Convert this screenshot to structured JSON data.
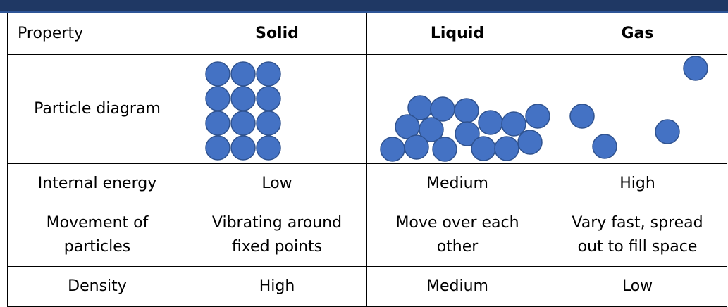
{
  "table": {
    "header": [
      "Property",
      "Solid",
      "Liquid",
      "Gas"
    ],
    "rows": [
      {
        "label": "Particle diagram"
      },
      {
        "label": "Internal energy",
        "cells": [
          "Low",
          "Medium",
          "High"
        ]
      },
      {
        "label": "Movement of particles",
        "cells": [
          "Vibrating around fixed points",
          "Move over each other",
          "Vary fast, spread out to fill space"
        ]
      },
      {
        "label": "Density",
        "cells": [
          "High",
          "Medium",
          "Low"
        ]
      }
    ]
  }
}
